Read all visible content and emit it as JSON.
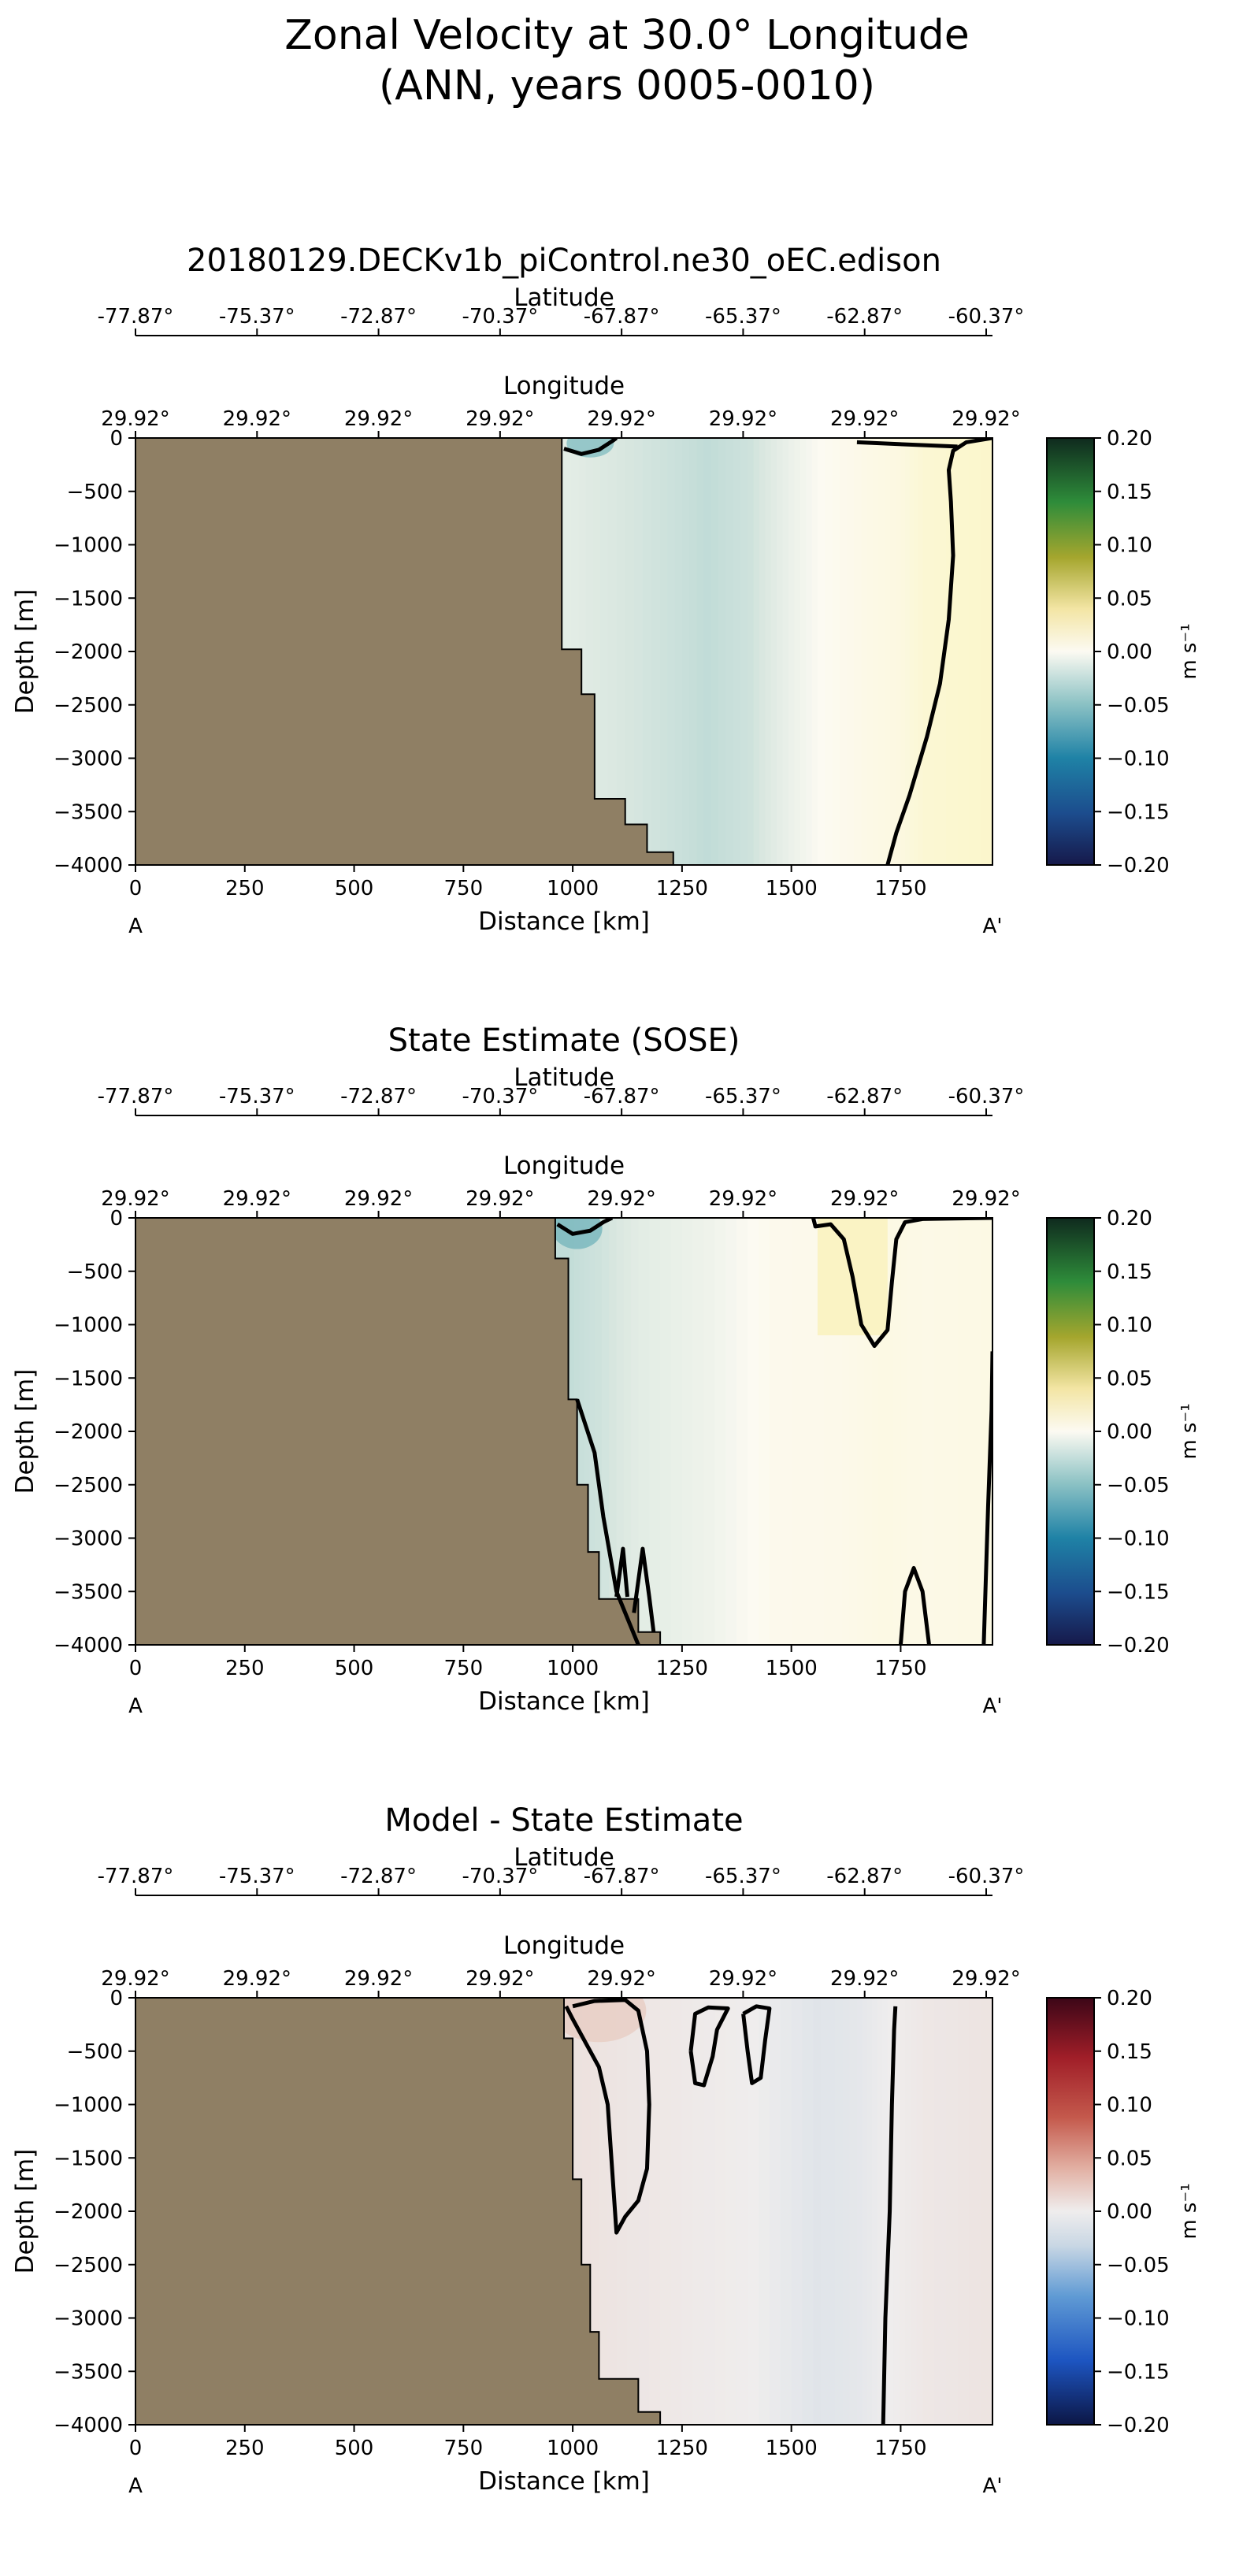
{
  "suptitle": [
    "Zonal Velocity at 30.0° Longitude",
    "(ANN, years 0005-0010)"
  ],
  "chart_data": [
    {
      "type": "heatmap",
      "title": "20180129.DECKv1b_piControl.ne30_oEC.edison",
      "xlabel": "Distance [km]",
      "ylabel": "Depth [m]",
      "xlim": [
        0,
        1960
      ],
      "ylim": [
        -4000,
        0
      ],
      "x_ticks": [
        0,
        250,
        500,
        750,
        1000,
        1250,
        1500,
        1750
      ],
      "y_ticks": [
        0,
        -500,
        -1000,
        -1500,
        -2000,
        -2500,
        -3000,
        -3500,
        -4000
      ],
      "secondary_axes": {
        "latitude_label": "Latitude",
        "latitude_ticks": [
          "-77.87°",
          "-75.37°",
          "-72.87°",
          "-70.37°",
          "-67.87°",
          "-65.37°",
          "-62.87°",
          "-60.37°"
        ],
        "longitude_label": "Longitude",
        "longitude_ticks": [
          "29.92°",
          "29.92°",
          "29.92°",
          "29.92°",
          "29.92°",
          "29.92°",
          "29.92°",
          "29.92°"
        ]
      },
      "end_labels": [
        "A",
        "A'"
      ],
      "colorbar": {
        "label": "m s⁻¹",
        "range": [
          -0.2,
          0.2
        ],
        "ticks": [
          "0.20",
          "0.15",
          "0.10",
          "0.05",
          "0.00",
          "−0.05",
          "−0.10",
          "−0.15",
          "−0.20"
        ],
        "colormap": "diverging blue-white-yellow-green"
      },
      "bathymetry": [
        [
          0,
          -4000
        ],
        [
          0,
          0
        ],
        [
          975,
          0
        ],
        [
          975,
          -1980
        ],
        [
          1020,
          -1980
        ],
        [
          1020,
          -2400
        ],
        [
          1050,
          -2400
        ],
        [
          1050,
          -3380
        ],
        [
          1120,
          -3380
        ],
        [
          1120,
          -3620
        ],
        [
          1170,
          -3620
        ],
        [
          1170,
          -3880
        ],
        [
          1230,
          -3880
        ],
        [
          1230,
          -4000
        ]
      ],
      "fill_bands": [
        [
          980,
          -0.015
        ],
        [
          1080,
          -0.02
        ],
        [
          1200,
          -0.025
        ],
        [
          1300,
          -0.03
        ],
        [
          1400,
          -0.025
        ],
        [
          1480,
          -0.012
        ],
        [
          1560,
          0.0
        ],
        [
          1660,
          0.008
        ],
        [
          1740,
          0.012
        ],
        [
          1800,
          0.022
        ],
        [
          1960,
          0.028
        ]
      ],
      "zero_contours": [
        [
          [
            980,
            -100
          ],
          [
            1020,
            -150
          ],
          [
            1060,
            -110
          ],
          [
            1090,
            -30
          ],
          [
            1100,
            0
          ]
        ],
        [
          [
            1720,
            -4000
          ],
          [
            1740,
            -3700
          ],
          [
            1770,
            -3350
          ],
          [
            1810,
            -2800
          ],
          [
            1840,
            -2300
          ],
          [
            1860,
            -1700
          ],
          [
            1870,
            -1100
          ],
          [
            1865,
            -600
          ],
          [
            1860,
            -300
          ],
          [
            1870,
            -120
          ],
          [
            1900,
            -40
          ],
          [
            1960,
            0
          ]
        ],
        [
          [
            1650,
            -40
          ],
          [
            1760,
            -60
          ],
          [
            1880,
            -80
          ]
        ]
      ]
    },
    {
      "type": "heatmap",
      "title": "State Estimate (SOSE)",
      "xlabel": "Distance [km]",
      "ylabel": "Depth [m]",
      "xlim": [
        0,
        1960
      ],
      "ylim": [
        -4000,
        0
      ],
      "x_ticks": [
        0,
        250,
        500,
        750,
        1000,
        1250,
        1500,
        1750
      ],
      "y_ticks": [
        0,
        -500,
        -1000,
        -1500,
        -2000,
        -2500,
        -3000,
        -3500,
        -4000
      ],
      "secondary_axes": {
        "latitude_label": "Latitude",
        "latitude_ticks": [
          "-77.87°",
          "-75.37°",
          "-72.87°",
          "-70.37°",
          "-67.87°",
          "-65.37°",
          "-62.87°",
          "-60.37°"
        ],
        "longitude_label": "Longitude",
        "longitude_ticks": [
          "29.92°",
          "29.92°",
          "29.92°",
          "29.92°",
          "29.92°",
          "29.92°",
          "29.92°",
          "29.92°"
        ]
      },
      "end_labels": [
        "A",
        "A'"
      ],
      "colorbar": {
        "label": "m s⁻¹",
        "range": [
          -0.2,
          0.2
        ],
        "ticks": [
          "0.20",
          "0.15",
          "0.10",
          "0.05",
          "0.00",
          "−0.05",
          "−0.10",
          "−0.15",
          "−0.20"
        ],
        "colormap": "diverging blue-white-yellow-green"
      },
      "bathymetry": [
        [
          0,
          -4000
        ],
        [
          0,
          0
        ],
        [
          960,
          0
        ],
        [
          960,
          -380
        ],
        [
          990,
          -380
        ],
        [
          990,
          -1700
        ],
        [
          1010,
          -1700
        ],
        [
          1010,
          -2500
        ],
        [
          1035,
          -2500
        ],
        [
          1035,
          -3130
        ],
        [
          1060,
          -3130
        ],
        [
          1060,
          -3570
        ],
        [
          1150,
          -3570
        ],
        [
          1150,
          -3880
        ],
        [
          1200,
          -3880
        ],
        [
          1200,
          -4000
        ]
      ],
      "fill_bands": [
        [
          980,
          -0.03
        ],
        [
          1050,
          -0.025
        ],
        [
          1150,
          -0.015
        ],
        [
          1300,
          -0.008
        ],
        [
          1450,
          0.004
        ],
        [
          1600,
          0.006
        ],
        [
          1700,
          0.01
        ],
        [
          1800,
          0.008
        ],
        [
          1960,
          0.01
        ]
      ],
      "zero_contours": [
        [
          [
            965,
            -60
          ],
          [
            1000,
            -150
          ],
          [
            1040,
            -120
          ],
          [
            1070,
            -40
          ],
          [
            1090,
            0
          ]
        ],
        [
          [
            1550,
            0
          ],
          [
            1555,
            -80
          ],
          [
            1590,
            -60
          ],
          [
            1620,
            -200
          ],
          [
            1640,
            -550
          ],
          [
            1660,
            -1000
          ],
          [
            1690,
            -1200
          ],
          [
            1720,
            -1050
          ],
          [
            1730,
            -600
          ],
          [
            1740,
            -200
          ],
          [
            1760,
            -40
          ],
          [
            1800,
            -10
          ],
          [
            1960,
            0
          ]
        ],
        [
          [
            1010,
            -1700
          ],
          [
            1050,
            -2200
          ],
          [
            1070,
            -2800
          ],
          [
            1100,
            -3500
          ],
          [
            1140,
            -3900
          ],
          [
            1150,
            -4000
          ]
        ],
        [
          [
            1100,
            -3550
          ],
          [
            1115,
            -3100
          ],
          [
            1125,
            -3550
          ]
        ],
        [
          [
            1140,
            -3700
          ],
          [
            1160,
            -3100
          ],
          [
            1175,
            -3550
          ],
          [
            1185,
            -3880
          ]
        ],
        [
          [
            1750,
            -4000
          ],
          [
            1760,
            -3500
          ],
          [
            1780,
            -3280
          ],
          [
            1800,
            -3500
          ],
          [
            1815,
            -4000
          ]
        ],
        [
          [
            1940,
            -4000
          ],
          [
            1950,
            -2700
          ],
          [
            1958,
            -1800
          ],
          [
            1960,
            -1250
          ]
        ]
      ]
    },
    {
      "type": "heatmap",
      "title": "Model - State Estimate",
      "xlabel": "Distance [km]",
      "ylabel": "Depth [m]",
      "xlim": [
        0,
        1960
      ],
      "ylim": [
        -4000,
        0
      ],
      "x_ticks": [
        0,
        250,
        500,
        750,
        1000,
        1250,
        1500,
        1750
      ],
      "y_ticks": [
        0,
        -500,
        -1000,
        -1500,
        -2000,
        -2500,
        -3000,
        -3500,
        -4000
      ],
      "secondary_axes": {
        "latitude_label": "Latitude",
        "latitude_ticks": [
          "-77.87°",
          "-75.37°",
          "-72.87°",
          "-70.37°",
          "-67.87°",
          "-65.37°",
          "-62.87°",
          "-60.37°"
        ],
        "longitude_label": "Longitude",
        "longitude_ticks": [
          "29.92°",
          "29.92°",
          "29.92°",
          "29.92°",
          "29.92°",
          "29.92°",
          "29.92°",
          "29.92°"
        ]
      },
      "end_labels": [
        "A",
        "A'"
      ],
      "colorbar": {
        "label": "m s⁻¹",
        "range": [
          -0.2,
          0.2
        ],
        "ticks": [
          "0.20",
          "0.15",
          "0.10",
          "0.05",
          "0.00",
          "−0.05",
          "−0.10",
          "−0.15",
          "−0.20"
        ],
        "colormap": "diverging blue-white-red"
      },
      "bathymetry": [
        [
          0,
          -4000
        ],
        [
          0,
          0
        ],
        [
          980,
          0
        ],
        [
          980,
          -380
        ],
        [
          1000,
          -380
        ],
        [
          1000,
          -1700
        ],
        [
          1020,
          -1700
        ],
        [
          1020,
          -2500
        ],
        [
          1040,
          -2500
        ],
        [
          1040,
          -3130
        ],
        [
          1060,
          -3130
        ],
        [
          1060,
          -3570
        ],
        [
          1150,
          -3570
        ],
        [
          1150,
          -3880
        ],
        [
          1200,
          -3880
        ],
        [
          1200,
          -4000
        ]
      ],
      "fill_bands": [
        [
          980,
          0.012
        ],
        [
          1100,
          0.008
        ],
        [
          1250,
          0.004
        ],
        [
          1400,
          0.0
        ],
        [
          1550,
          -0.012
        ],
        [
          1650,
          -0.008
        ],
        [
          1720,
          0.0
        ],
        [
          1800,
          0.006
        ],
        [
          1960,
          0.01
        ]
      ],
      "zero_contours": [
        [
          [
            985,
            -80
          ],
          [
            1000,
            -200
          ],
          [
            1020,
            -350
          ],
          [
            1060,
            -650
          ],
          [
            1080,
            -1000
          ],
          [
            1090,
            -1600
          ],
          [
            1100,
            -2200
          ],
          [
            1120,
            -2050
          ],
          [
            1150,
            -1900
          ],
          [
            1170,
            -1600
          ],
          [
            1175,
            -1000
          ],
          [
            1170,
            -500
          ],
          [
            1150,
            -120
          ],
          [
            1120,
            -20
          ],
          [
            1050,
            -30
          ],
          [
            1000,
            -80
          ]
        ],
        [
          [
            1270,
            -500
          ],
          [
            1280,
            -800
          ],
          [
            1300,
            -820
          ],
          [
            1320,
            -550
          ],
          [
            1330,
            -300
          ],
          [
            1355,
            -100
          ],
          [
            1310,
            -90
          ],
          [
            1280,
            -150
          ],
          [
            1270,
            -500
          ]
        ],
        [
          [
            1390,
            -150
          ],
          [
            1400,
            -500
          ],
          [
            1410,
            -800
          ],
          [
            1430,
            -750
          ],
          [
            1440,
            -400
          ],
          [
            1450,
            -100
          ],
          [
            1420,
            -80
          ],
          [
            1390,
            -150
          ]
        ],
        [
          [
            1710,
            -4000
          ],
          [
            1715,
            -3000
          ],
          [
            1725,
            -2000
          ],
          [
            1730,
            -1000
          ],
          [
            1735,
            -300
          ],
          [
            1738,
            -80
          ]
        ]
      ]
    }
  ]
}
